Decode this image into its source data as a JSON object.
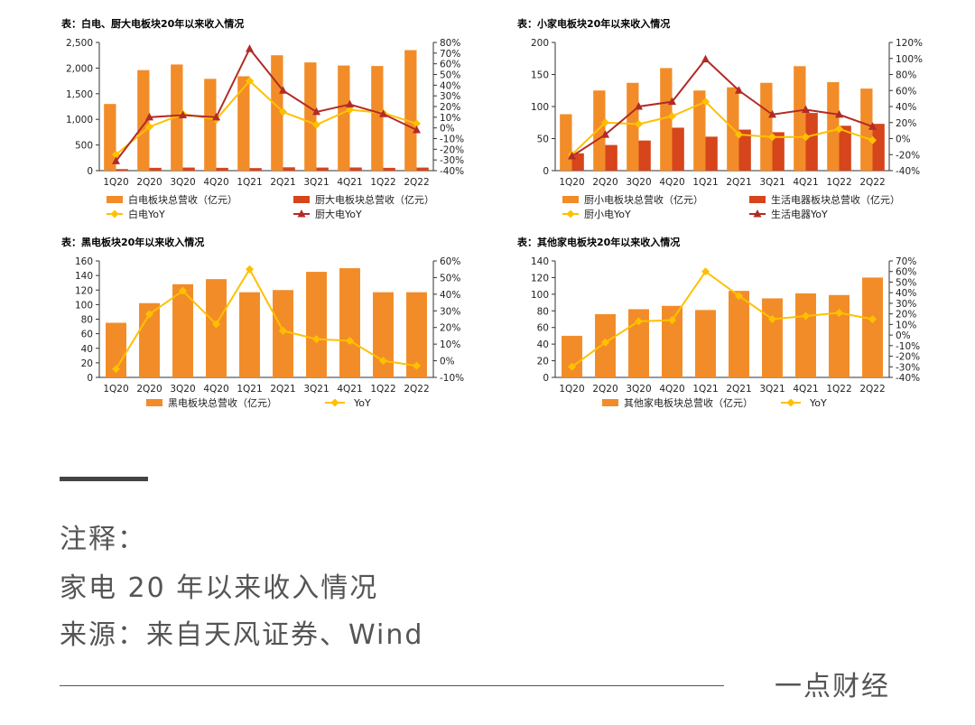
{
  "colors": {
    "bar_primary": "#F28C28",
    "bar_secondary": "#D6451B",
    "line_primary": "#FFC000",
    "line_secondary": "#B22B26"
  },
  "chart_data": [
    {
      "type": "bar+line",
      "title": "表：白电、厨大电板块20年以来收入情况",
      "categories": [
        "1Q20",
        "2Q20",
        "3Q20",
        "4Q20",
        "1Q21",
        "2Q21",
        "3Q21",
        "4Q21",
        "1Q22",
        "2Q22"
      ],
      "left_axis": {
        "min": 0,
        "max": 2500,
        "ticks": [
          "0",
          "500",
          "1,000",
          "1,500",
          "2,000",
          "2,500"
        ]
      },
      "right_axis": {
        "min": -40,
        "max": 80,
        "ticks": [
          "-40%",
          "-30%",
          "-20%",
          "-10%",
          "0%",
          "10%",
          "20%",
          "30%",
          "40%",
          "50%",
          "60%",
          "70%",
          "80%"
        ]
      },
      "bars": [
        {
          "name": "白电板块总营收（亿元）",
          "values": [
            1300,
            1960,
            2070,
            1790,
            1840,
            2250,
            2110,
            2050,
            2040,
            2350
          ],
          "color": "#F28C28"
        },
        {
          "name": "厨大电板块总营收（亿元）",
          "values": [
            30,
            55,
            60,
            55,
            50,
            65,
            60,
            62,
            55,
            60
          ],
          "color": "#D6451B"
        }
      ],
      "lines": [
        {
          "name": "白电YoY",
          "values": [
            -25,
            1,
            13,
            8,
            44,
            15,
            3,
            17,
            14,
            4
          ],
          "color": "#FFC000",
          "marker": "diamond"
        },
        {
          "name": "厨大电YoY",
          "values": [
            -31,
            10,
            12,
            10,
            74,
            35,
            15,
            22,
            13,
            -2
          ],
          "color": "#B22B26",
          "marker": "triangle"
        }
      ],
      "legend": "bottom"
    },
    {
      "type": "bar+line",
      "title": "表：小家电板块20年以来收入情况",
      "categories": [
        "1Q20",
        "2Q20",
        "3Q20",
        "4Q20",
        "1Q21",
        "2Q21",
        "3Q21",
        "4Q21",
        "1Q22",
        "2Q22"
      ],
      "left_axis": {
        "min": 0,
        "max": 200,
        "ticks": [
          "0",
          "50",
          "100",
          "150",
          "200"
        ]
      },
      "right_axis": {
        "min": -40,
        "max": 120,
        "ticks": [
          "-40%",
          "-20%",
          "0%",
          "20%",
          "40%",
          "60%",
          "80%",
          "100%",
          "120%"
        ]
      },
      "bars": [
        {
          "name": "厨小电板块总营收（亿元）",
          "values": [
            88,
            125,
            137,
            160,
            125,
            130,
            137,
            163,
            138,
            128
          ],
          "color": "#F28C28"
        },
        {
          "name": "生活电器板块总营收（亿元）",
          "values": [
            27,
            40,
            47,
            67,
            53,
            64,
            60,
            90,
            70,
            73
          ],
          "color": "#D6451B"
        }
      ],
      "lines": [
        {
          "name": "厨小电YoY",
          "values": [
            -20,
            20,
            18,
            28,
            46,
            5,
            2,
            2,
            12,
            -2
          ],
          "color": "#FFC000",
          "marker": "diamond"
        },
        {
          "name": "生活电器YoY",
          "values": [
            -22,
            5,
            40,
            46,
            99,
            60,
            30,
            36,
            30,
            15
          ],
          "color": "#B22B26",
          "marker": "triangle"
        }
      ],
      "legend": "bottom"
    },
    {
      "type": "bar+line",
      "title": "表：黑电板块20年以来收入情况",
      "categories": [
        "1Q20",
        "2Q20",
        "3Q20",
        "4Q20",
        "1Q21",
        "2Q21",
        "3Q21",
        "4Q21",
        "1Q22",
        "2Q22"
      ],
      "left_axis": {
        "min": 0,
        "max": 160,
        "ticks": [
          "0",
          "20",
          "40",
          "60",
          "80",
          "100",
          "120",
          "140",
          "160"
        ]
      },
      "right_axis": {
        "min": -10,
        "max": 60,
        "ticks": [
          "-10%",
          "0%",
          "10%",
          "20%",
          "30%",
          "40%",
          "50%",
          "60%"
        ]
      },
      "bars": [
        {
          "name": "黑电板块总营收（亿元）",
          "values": [
            75,
            102,
            128,
            135,
            117,
            120,
            145,
            150,
            117,
            117
          ],
          "color": "#F28C28"
        }
      ],
      "lines": [
        {
          "name": "YoY",
          "values": [
            -5,
            28,
            42,
            22,
            55,
            18,
            13,
            12,
            0,
            -3
          ],
          "color": "#FFC000",
          "marker": "diamond"
        }
      ],
      "legend": "bottom"
    },
    {
      "type": "bar+line",
      "title": "表：其他家电板块20年以来收入情况",
      "categories": [
        "1Q20",
        "2Q20",
        "3Q20",
        "4Q20",
        "1Q21",
        "2Q21",
        "3Q21",
        "4Q21",
        "1Q22",
        "2Q22"
      ],
      "left_axis": {
        "min": 0,
        "max": 140,
        "ticks": [
          "0",
          "20",
          "40",
          "60",
          "80",
          "100",
          "120",
          "140"
        ]
      },
      "right_axis": {
        "min": -40,
        "max": 70,
        "ticks": [
          "-40%",
          "-30%",
          "-20%",
          "-10%",
          "0%",
          "10%",
          "20%",
          "30%",
          "40%",
          "50%",
          "60%",
          "70%"
        ]
      },
      "bars": [
        {
          "name": "其他家电板块总营收（亿元）",
          "values": [
            50,
            76,
            82,
            86,
            81,
            104,
            95,
            101,
            99,
            120
          ],
          "color": "#F28C28"
        }
      ],
      "lines": [
        {
          "name": "YoY",
          "values": [
            -30,
            -7,
            13,
            14,
            60,
            37,
            15,
            18,
            21,
            15
          ],
          "color": "#FFC000",
          "marker": "diamond"
        }
      ],
      "legend": "bottom"
    }
  ],
  "notes": {
    "heading": "注释：",
    "line1": "家电 20 年以来收入情况",
    "line2": "来源：来自天风证券、Wind"
  },
  "brand": "一点财经"
}
